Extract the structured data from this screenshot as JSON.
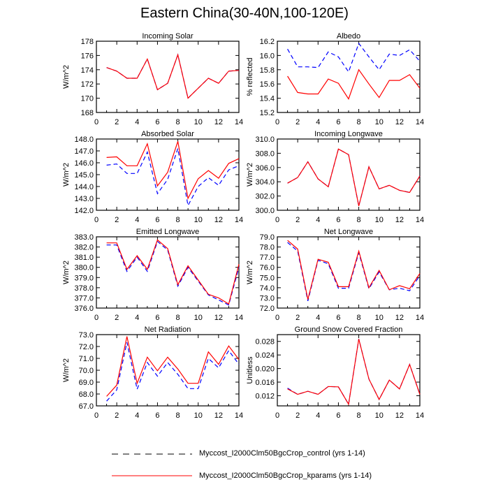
{
  "title": "Eastern China(30-40N,100-120E)",
  "legend": [
    {
      "label": "Myccost_I2000Clm50BgcCrop_control (yrs 1-14)",
      "color": "#0000ff",
      "style": "dashed"
    },
    {
      "label": "Myccost_I2000Clm50BgcCrop_kparams (yrs 1-14)",
      "color": "#ff0000",
      "style": "solid"
    }
  ],
  "chart_data": [
    {
      "type": "line",
      "title": "Incoming Solar",
      "ylabel": "W/m^2",
      "xlim": [
        0,
        14
      ],
      "ylim": [
        168,
        178
      ],
      "xticks": [
        "0",
        "2",
        "4",
        "6",
        "8",
        "10",
        "12",
        "14"
      ],
      "yticks": [
        "168",
        "170",
        "172",
        "174",
        "176",
        "178"
      ],
      "x": [
        1,
        2,
        3,
        4,
        5,
        6,
        7,
        8,
        9,
        10,
        11,
        12,
        13,
        14
      ],
      "series": [
        {
          "name": "control",
          "values": [
            174.3,
            173.8,
            172.8,
            172.8,
            175.5,
            171.2,
            172.1,
            176.1,
            170.0,
            171.4,
            172.8,
            172.1,
            173.8,
            173.9
          ]
        },
        {
          "name": "kparams",
          "values": [
            174.3,
            173.8,
            172.8,
            172.8,
            175.5,
            171.2,
            172.1,
            176.1,
            170.0,
            171.4,
            172.8,
            172.1,
            173.8,
            173.9
          ]
        }
      ]
    },
    {
      "type": "line",
      "title": "Albedo",
      "ylabel": "% reflected",
      "xlim": [
        0,
        14
      ],
      "ylim": [
        15.2,
        16.2
      ],
      "xticks": [
        "0",
        "2",
        "4",
        "6",
        "8",
        "10",
        "12",
        "14"
      ],
      "yticks": [
        "15.2",
        "15.4",
        "15.6",
        "15.8",
        "16.0",
        "16.2"
      ],
      "x": [
        1,
        2,
        3,
        4,
        5,
        6,
        7,
        8,
        9,
        10,
        11,
        12,
        13,
        14
      ],
      "series": [
        {
          "name": "control",
          "values": [
            16.09,
            15.84,
            15.84,
            15.83,
            16.05,
            15.98,
            15.77,
            16.17,
            15.98,
            15.8,
            16.02,
            16.0,
            16.08,
            15.92
          ]
        },
        {
          "name": "kparams",
          "values": [
            15.71,
            15.48,
            15.46,
            15.46,
            15.67,
            15.61,
            15.39,
            15.8,
            15.6,
            15.41,
            15.65,
            15.65,
            15.73,
            15.54
          ]
        }
      ]
    },
    {
      "type": "line",
      "title": "Absorbed Solar",
      "ylabel": "W/m^2",
      "xlim": [
        0,
        14
      ],
      "ylim": [
        142,
        148
      ],
      "xticks": [
        "0",
        "2",
        "4",
        "6",
        "8",
        "10",
        "12",
        "14"
      ],
      "yticks": [
        "142.0",
        "143.0",
        "144.0",
        "145.0",
        "146.0",
        "147.0",
        "148.0"
      ],
      "x": [
        1,
        2,
        3,
        4,
        5,
        6,
        7,
        8,
        9,
        10,
        11,
        12,
        13,
        14
      ],
      "series": [
        {
          "name": "control",
          "values": [
            145.8,
            145.9,
            145.1,
            145.1,
            146.9,
            143.4,
            144.6,
            147.2,
            142.4,
            144.0,
            144.75,
            144.1,
            145.4,
            145.75
          ]
        },
        {
          "name": "kparams",
          "values": [
            146.45,
            146.5,
            145.75,
            145.75,
            147.6,
            144.05,
            145.2,
            147.8,
            143.0,
            144.65,
            145.35,
            144.7,
            145.95,
            146.35
          ]
        }
      ]
    },
    {
      "type": "line",
      "title": "Incoming Longwave",
      "ylabel": "W/m^2",
      "xlim": [
        0,
        14
      ],
      "ylim": [
        300,
        310
      ],
      "xticks": [
        "0",
        "2",
        "4",
        "6",
        "8",
        "10",
        "12",
        "14"
      ],
      "yticks": [
        "300.0",
        "302.0",
        "304.0",
        "306.0",
        "308.0",
        "310.0"
      ],
      "x": [
        1,
        2,
        3,
        4,
        5,
        6,
        7,
        8,
        9,
        10,
        11,
        12,
        13,
        14
      ],
      "series": [
        {
          "name": "control",
          "values": [
            303.8,
            304.6,
            306.8,
            304.4,
            303.3,
            308.6,
            307.8,
            300.6,
            306.1,
            303.0,
            303.5,
            302.8,
            302.5,
            304.8
          ]
        },
        {
          "name": "kparams",
          "values": [
            303.8,
            304.6,
            306.8,
            304.4,
            303.3,
            308.6,
            307.8,
            300.6,
            306.1,
            303.0,
            303.5,
            302.8,
            302.5,
            304.8
          ]
        }
      ]
    },
    {
      "type": "line",
      "title": "Emitted Longwave",
      "ylabel": "W/m^2",
      "xlim": [
        0,
        14
      ],
      "ylim": [
        376,
        383
      ],
      "xticks": [
        "0",
        "2",
        "4",
        "6",
        "8",
        "10",
        "12",
        "14"
      ],
      "yticks": [
        "376.0",
        "377.0",
        "378.0",
        "379.0",
        "380.0",
        "381.0",
        "382.0",
        "383.0"
      ],
      "x": [
        1,
        2,
        3,
        4,
        5,
        6,
        7,
        8,
        9,
        10,
        11,
        12,
        13,
        14
      ],
      "series": [
        {
          "name": "control",
          "values": [
            382.2,
            382.2,
            379.6,
            381.0,
            379.6,
            382.55,
            381.7,
            378.15,
            380.0,
            378.65,
            377.3,
            376.8,
            376.3,
            380.0
          ]
        },
        {
          "name": "kparams",
          "values": [
            382.4,
            382.4,
            379.8,
            381.15,
            379.8,
            382.7,
            381.85,
            378.3,
            380.15,
            378.75,
            377.35,
            377.0,
            376.4,
            380.3
          ]
        }
      ]
    },
    {
      "type": "line",
      "title": "Net Longwave",
      "ylabel": "W/m^2",
      "xlim": [
        0,
        14
      ],
      "ylim": [
        72,
        79
      ],
      "xticks": [
        "0",
        "2",
        "4",
        "6",
        "8",
        "10",
        "12",
        "14"
      ],
      "yticks": [
        "72.0",
        "73.0",
        "74.0",
        "75.0",
        "76.0",
        "77.0",
        "78.0",
        "79.0"
      ],
      "x": [
        1,
        2,
        3,
        4,
        5,
        6,
        7,
        8,
        9,
        10,
        11,
        12,
        13,
        14
      ],
      "series": [
        {
          "name": "control",
          "values": [
            78.45,
            77.6,
            72.7,
            76.7,
            76.35,
            73.95,
            73.95,
            77.45,
            73.9,
            75.55,
            73.8,
            73.95,
            73.7,
            75.2
          ]
        },
        {
          "name": "kparams",
          "values": [
            78.65,
            77.8,
            72.85,
            76.8,
            76.5,
            74.1,
            74.1,
            77.6,
            74.0,
            75.7,
            73.8,
            74.2,
            73.9,
            75.4
          ]
        }
      ]
    },
    {
      "type": "line",
      "title": "Net Radiation",
      "ylabel": "W/m^2",
      "xlim": [
        0,
        14
      ],
      "ylim": [
        67,
        73
      ],
      "xticks": [
        "0",
        "2",
        "4",
        "6",
        "8",
        "10",
        "12",
        "14"
      ],
      "yticks": [
        "67.0",
        "68.0",
        "69.0",
        "70.0",
        "71.0",
        "72.0",
        "73.0"
      ],
      "x": [
        1,
        2,
        3,
        4,
        5,
        6,
        7,
        8,
        9,
        10,
        11,
        12,
        13,
        14
      ],
      "series": [
        {
          "name": "control",
          "values": [
            67.4,
            68.35,
            72.35,
            68.4,
            70.65,
            69.5,
            70.65,
            69.65,
            68.45,
            68.45,
            71.0,
            70.2,
            71.65,
            70.5
          ]
        },
        {
          "name": "kparams",
          "values": [
            67.8,
            68.75,
            72.85,
            68.9,
            71.1,
            69.95,
            71.1,
            70.1,
            68.9,
            68.9,
            71.55,
            70.5,
            72.05,
            70.9
          ]
        }
      ]
    },
    {
      "type": "line",
      "title": "Ground Snow Covered Fraction",
      "ylabel": "Unitless",
      "xlim": [
        0,
        14
      ],
      "ylim": [
        0.009,
        0.03
      ],
      "xticks": [
        "0",
        "2",
        "4",
        "6",
        "8",
        "10",
        "12",
        "14"
      ],
      "yticks": [
        "0.012",
        "0.016",
        "0.020",
        "0.024",
        "0.028"
      ],
      "x": [
        1,
        2,
        3,
        4,
        5,
        6,
        7,
        8,
        9,
        10,
        11,
        12,
        13,
        14
      ],
      "series": [
        {
          "name": "control",
          "values": [
            0.0142,
            0.0124,
            0.0133,
            0.0124,
            0.0147,
            0.0146,
            0.0095,
            0.0287,
            0.0169,
            0.0109,
            0.0166,
            0.014,
            0.0212,
            0.0124
          ]
        },
        {
          "name": "kparams",
          "values": [
            0.014,
            0.0124,
            0.0133,
            0.0124,
            0.0147,
            0.0146,
            0.0095,
            0.0287,
            0.0169,
            0.0109,
            0.0166,
            0.014,
            0.0212,
            0.0124
          ]
        }
      ]
    }
  ]
}
